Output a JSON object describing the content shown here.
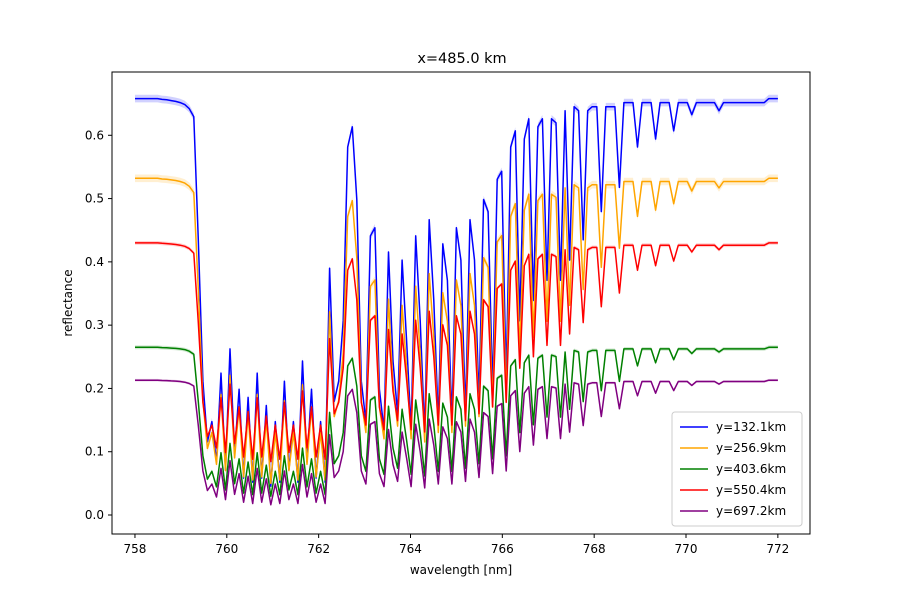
{
  "chart_data": {
    "type": "line",
    "title": "x=485.0 km",
    "xlabel": "wavelength [nm]",
    "ylabel": "reflectance",
    "xlim": [
      757.5,
      772.7
    ],
    "ylim": [
      -0.03,
      0.7
    ],
    "xticks": [
      758,
      760,
      762,
      764,
      766,
      768,
      770,
      772
    ],
    "yticks": [
      0.0,
      0.1,
      0.2,
      0.3,
      0.4,
      0.5,
      0.6
    ],
    "ytick_labels": [
      "0.0",
      "0.1",
      "0.2",
      "0.3",
      "0.4",
      "0.5",
      "0.6"
    ],
    "grid": false,
    "legend_position": "lower-right",
    "x_start": 758.0,
    "x_end": 772.0,
    "x_step": 0.1,
    "shape": [
      1.0,
      1.0,
      1.0,
      1.0,
      1.0,
      1.0,
      0.998,
      0.997,
      0.995,
      0.993,
      0.99,
      0.985,
      0.975,
      0.955,
      0.65,
      0.3,
      0.15,
      0.2,
      0.1,
      0.32,
      0.08,
      0.38,
      0.12,
      0.28,
      0.06,
      0.26,
      0.05,
      0.32,
      0.06,
      0.24,
      0.04,
      0.2,
      0.05,
      0.3,
      0.08,
      0.2,
      0.05,
      0.35,
      0.1,
      0.28,
      0.06,
      0.2,
      0.05,
      0.58,
      0.25,
      0.3,
      0.45,
      0.88,
      0.93,
      0.75,
      0.3,
      0.2,
      0.66,
      0.68,
      0.28,
      0.18,
      0.62,
      0.35,
      0.22,
      0.6,
      0.4,
      0.18,
      0.66,
      0.45,
      0.17,
      0.7,
      0.5,
      0.2,
      0.64,
      0.55,
      0.2,
      0.68,
      0.6,
      0.22,
      0.7,
      0.6,
      0.25,
      0.75,
      0.72,
      0.28,
      0.8,
      0.82,
      0.3,
      0.88,
      0.92,
      0.45,
      0.9,
      0.95,
      0.5,
      0.93,
      0.95,
      0.55,
      0.95,
      0.94,
      0.55,
      0.97,
      0.6,
      0.98,
      0.97,
      0.65,
      0.97,
      0.98,
      0.98,
      0.72,
      0.98,
      0.98,
      0.98,
      0.78,
      0.99,
      0.99,
      0.99,
      0.88,
      0.99,
      0.99,
      0.99,
      0.9,
      0.99,
      0.99,
      0.99,
      0.92,
      0.99,
      0.99,
      0.99,
      0.96,
      0.99,
      0.99,
      0.99,
      0.99,
      0.99,
      0.97,
      0.99,
      0.99,
      0.99,
      0.99,
      0.99,
      0.99,
      0.99,
      0.99,
      0.99,
      0.99,
      1.0,
      1.0,
      1.0
    ],
    "series": [
      {
        "name": "y=132.1km",
        "color": "#0000ff",
        "scale": 0.658,
        "floor": 0.02,
        "band": 0.006
      },
      {
        "name": "y=256.9km",
        "color": "#ffa500",
        "scale": 0.532,
        "floor": 0.03,
        "band": 0.006
      },
      {
        "name": "y=403.6km",
        "color": "#008000",
        "scale": 0.265,
        "floor": 0.02,
        "band": 0.003
      },
      {
        "name": "y=550.4km",
        "color": "#ff0000",
        "scale": 0.43,
        "floor": 0.07,
        "band": 0.003
      },
      {
        "name": "y=697.2km",
        "color": "#800080",
        "scale": 0.213,
        "floor": 0.008,
        "band": 0.002
      }
    ]
  }
}
